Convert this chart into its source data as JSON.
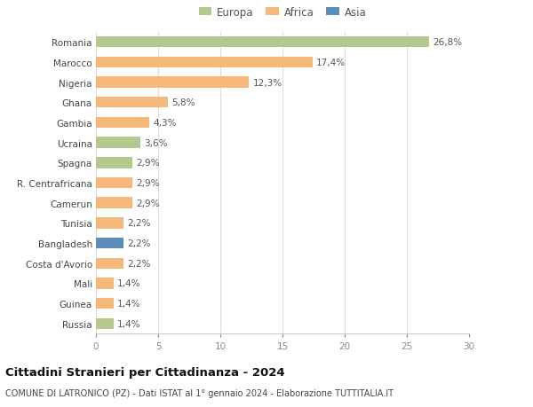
{
  "categories": [
    "Romania",
    "Marocco",
    "Nigeria",
    "Ghana",
    "Gambia",
    "Ucraina",
    "Spagna",
    "R. Centrafricana",
    "Camerun",
    "Tunisia",
    "Bangladesh",
    "Costa d'Avorio",
    "Mali",
    "Guinea",
    "Russia"
  ],
  "values": [
    26.8,
    17.4,
    12.3,
    5.8,
    4.3,
    3.6,
    2.9,
    2.9,
    2.9,
    2.2,
    2.2,
    2.2,
    1.4,
    1.4,
    1.4
  ],
  "labels": [
    "26,8%",
    "17,4%",
    "12,3%",
    "5,8%",
    "4,3%",
    "3,6%",
    "2,9%",
    "2,9%",
    "2,9%",
    "2,2%",
    "2,2%",
    "2,2%",
    "1,4%",
    "1,4%",
    "1,4%"
  ],
  "colors": [
    "#b5c98e",
    "#f5b87a",
    "#f5b87a",
    "#f5b87a",
    "#f5b87a",
    "#b5c98e",
    "#b5c98e",
    "#f5b87a",
    "#f5b87a",
    "#f5b87a",
    "#5b8db8",
    "#f5b87a",
    "#f5b87a",
    "#f5b87a",
    "#b5c98e"
  ],
  "legend_labels": [
    "Europa",
    "Africa",
    "Asia"
  ],
  "legend_colors": [
    "#b5c98e",
    "#f5b87a",
    "#5b8db8"
  ],
  "title1": "Cittadini Stranieri per Cittadinanza - 2024",
  "title2": "COMUNE DI LATRONICO (PZ) - Dati ISTAT al 1° gennaio 2024 - Elaborazione TUTTITALIA.IT",
  "xlim": [
    0,
    30
  ],
  "xticks": [
    0,
    5,
    10,
    15,
    20,
    25,
    30
  ],
  "background_color": "#ffffff",
  "grid_color": "#dddddd",
  "bar_height": 0.55,
  "label_fontsize": 7.5,
  "tick_fontsize": 7.5,
  "title1_fontsize": 9.5,
  "title2_fontsize": 7.0,
  "legend_fontsize": 8.5
}
